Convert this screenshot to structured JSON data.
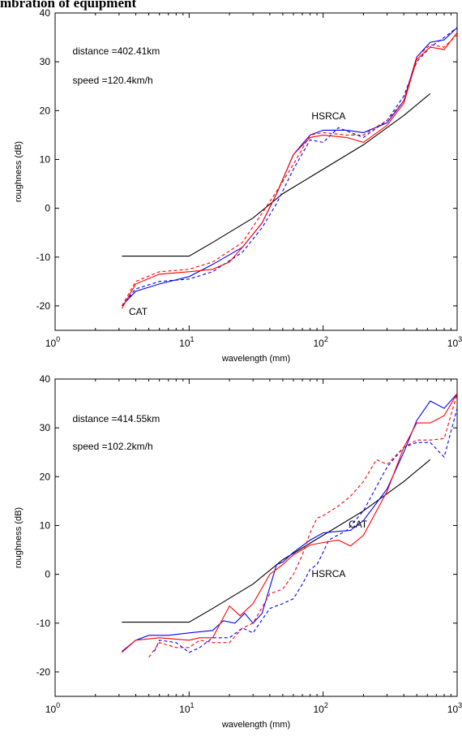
{
  "page": {
    "heading": "mbration of equipment"
  },
  "chart_data": [
    {
      "type": "line",
      "xscale": "log",
      "xlabel": "wavelength (mm)",
      "ylabel": "roughness (dB)",
      "xlim": [
        1,
        1000
      ],
      "ylim": [
        -25,
        40
      ],
      "x_ticks": [
        {
          "base": "10",
          "exp": "0",
          "value": 1
        },
        {
          "base": "10",
          "exp": "1",
          "value": 10
        },
        {
          "base": "10",
          "exp": "2",
          "value": 100
        },
        {
          "base": "10",
          "exp": "3",
          "value": 1000
        }
      ],
      "y_ticks": [
        -20,
        -10,
        0,
        10,
        20,
        30,
        40
      ],
      "annotations": [
        {
          "text": "distance =402.41km",
          "x": 1.35,
          "y": 31.5
        },
        {
          "text": "speed =120.4km/h",
          "x": 1.35,
          "y": 25.5
        },
        {
          "text": "HSRCA",
          "x": 82,
          "y": 18.2
        },
        {
          "text": "CAT",
          "x": 3.55,
          "y": -21.8
        }
      ],
      "series": [
        {
          "color": "#000000",
          "dash": false,
          "points": [
            [
              3.15,
              -9.8
            ],
            [
              10,
              -9.8
            ],
            [
              15,
              -7
            ],
            [
              30,
              -2
            ],
            [
              50,
              3
            ],
            [
              100,
              8
            ],
            [
              200,
              13
            ],
            [
              400,
              19
            ],
            [
              630,
              23.5
            ]
          ]
        },
        {
          "color": "#0000ff",
          "dash": false,
          "points": [
            [
              3.15,
              -20
            ],
            [
              4,
              -17
            ],
            [
              6,
              -15.5
            ],
            [
              10,
              -14
            ],
            [
              15,
              -11.5
            ],
            [
              25,
              -8
            ],
            [
              35,
              -3
            ],
            [
              45,
              3
            ],
            [
              60,
              11
            ],
            [
              80,
              15
            ],
            [
              100,
              16
            ],
            [
              150,
              16
            ],
            [
              200,
              15.5
            ],
            [
              300,
              17.5
            ],
            [
              400,
              22
            ],
            [
              500,
              31
            ],
            [
              630,
              34
            ],
            [
              800,
              34.5
            ],
            [
              1000,
              37
            ]
          ]
        },
        {
          "color": "#0000ff",
          "dash": true,
          "points": [
            [
              3.15,
              -20
            ],
            [
              4,
              -16.5
            ],
            [
              6,
              -15
            ],
            [
              10,
              -14.5
            ],
            [
              15,
              -13
            ],
            [
              25,
              -9
            ],
            [
              35,
              -4
            ],
            [
              45,
              1
            ],
            [
              60,
              8
            ],
            [
              80,
              14
            ],
            [
              100,
              13.5
            ],
            [
              130,
              16.5
            ],
            [
              200,
              14.5
            ],
            [
              300,
              18
            ],
            [
              400,
              23
            ],
            [
              500,
              30
            ],
            [
              630,
              33
            ],
            [
              800,
              35
            ],
            [
              1000,
              37
            ]
          ]
        },
        {
          "color": "#ff0000",
          "dash": false,
          "points": [
            [
              3.15,
              -20.5
            ],
            [
              4,
              -15.5
            ],
            [
              6,
              -13.5
            ],
            [
              10,
              -13
            ],
            [
              15,
              -12.5
            ],
            [
              20,
              -11
            ],
            [
              25,
              -8
            ],
            [
              35,
              -3
            ],
            [
              45,
              3
            ],
            [
              60,
              11
            ],
            [
              80,
              14.5
            ],
            [
              100,
              15
            ],
            [
              150,
              14.5
            ],
            [
              200,
              13.5
            ],
            [
              300,
              17
            ],
            [
              400,
              21.5
            ],
            [
              500,
              30.5
            ],
            [
              630,
              33
            ],
            [
              800,
              32.5
            ],
            [
              1000,
              36
            ]
          ]
        },
        {
          "color": "#ff0000",
          "dash": true,
          "points": [
            [
              3.15,
              -20
            ],
            [
              4,
              -15
            ],
            [
              6,
              -13
            ],
            [
              10,
              -12.5
            ],
            [
              15,
              -11
            ],
            [
              25,
              -7
            ],
            [
              35,
              -1
            ],
            [
              45,
              3.5
            ],
            [
              60,
              9
            ],
            [
              80,
              15
            ],
            [
              100,
              15.5
            ],
            [
              150,
              15
            ],
            [
              200,
              15
            ],
            [
              300,
              18
            ],
            [
              400,
              22
            ],
            [
              500,
              31
            ],
            [
              630,
              33.5
            ],
            [
              800,
              33
            ],
            [
              1000,
              35.5
            ]
          ]
        }
      ]
    },
    {
      "type": "line",
      "xscale": "log",
      "xlabel": "wavelength (mm)",
      "ylabel": "roughness (dB)",
      "xlim": [
        1,
        1000
      ],
      "ylim": [
        -25,
        40
      ],
      "x_ticks": [
        {
          "base": "10",
          "exp": "0",
          "value": 1
        },
        {
          "base": "10",
          "exp": "1",
          "value": 10
        },
        {
          "base": "10",
          "exp": "2",
          "value": 100
        },
        {
          "base": "10",
          "exp": "3",
          "value": 1000
        }
      ],
      "y_ticks": [
        -20,
        -10,
        0,
        10,
        20,
        30,
        40
      ],
      "annotations": [
        {
          "text": "distance =414.55km",
          "x": 1.35,
          "y": 31.2
        },
        {
          "text": "speed =102.2km/h",
          "x": 1.35,
          "y": 25.5
        },
        {
          "text": "CAT",
          "x": 155,
          "y": 9.6
        },
        {
          "text": "HSRCA",
          "x": 82,
          "y": -0.6
        }
      ],
      "series": [
        {
          "color": "#000000",
          "dash": false,
          "points": [
            [
              3.15,
              -9.8
            ],
            [
              10,
              -9.8
            ],
            [
              15,
              -7
            ],
            [
              30,
              -2
            ],
            [
              50,
              3
            ],
            [
              100,
              8
            ],
            [
              200,
              13
            ],
            [
              400,
              19
            ],
            [
              630,
              23.5
            ]
          ]
        },
        {
          "color": "#0000ff",
          "dash": false,
          "points": [
            [
              3.15,
              -15.8
            ],
            [
              4,
              -13.5
            ],
            [
              5,
              -12.5
            ],
            [
              7,
              -12.5
            ],
            [
              10,
              -12
            ],
            [
              15,
              -11.5
            ],
            [
              18,
              -9.5
            ],
            [
              22,
              -10
            ],
            [
              26,
              -8
            ],
            [
              30,
              -10
            ],
            [
              35,
              -8
            ],
            [
              45,
              2
            ],
            [
              50,
              2.5
            ],
            [
              60,
              4.5
            ],
            [
              80,
              7
            ],
            [
              100,
              8.5
            ],
            [
              130,
              8.8
            ],
            [
              160,
              9
            ],
            [
              200,
              11
            ],
            [
              300,
              17.5
            ],
            [
              400,
              25
            ],
            [
              500,
              31.5
            ],
            [
              630,
              35.5
            ],
            [
              800,
              34
            ],
            [
              1000,
              37
            ]
          ]
        },
        {
          "color": "#0000ff",
          "dash": true,
          "points": [
            [
              5.5,
              -15.8
            ],
            [
              6,
              -13.5
            ],
            [
              8,
              -14
            ],
            [
              10,
              -16
            ],
            [
              12,
              -15
            ],
            [
              15,
              -13
            ],
            [
              20,
              -13
            ],
            [
              25,
              -11
            ],
            [
              30,
              -12
            ],
            [
              40,
              -7
            ],
            [
              50,
              -6
            ],
            [
              60,
              -5
            ],
            [
              70,
              -2
            ],
            [
              80,
              1
            ],
            [
              90,
              2
            ],
            [
              100,
              4.5
            ],
            [
              110,
              7
            ],
            [
              150,
              9
            ],
            [
              200,
              13
            ],
            [
              300,
              22
            ],
            [
              400,
              26
            ],
            [
              500,
              27
            ],
            [
              630,
              27
            ],
            [
              800,
              24
            ],
            [
              1000,
              34
            ]
          ]
        },
        {
          "color": "#ff0000",
          "dash": false,
          "points": [
            [
              3.15,
              -16
            ],
            [
              4,
              -13.5
            ],
            [
              6,
              -13
            ],
            [
              10,
              -13.5
            ],
            [
              12,
              -13
            ],
            [
              15,
              -13
            ],
            [
              20,
              -6.5
            ],
            [
              24,
              -8.5
            ],
            [
              30,
              -6
            ],
            [
              40,
              0
            ],
            [
              50,
              2
            ],
            [
              60,
              4
            ],
            [
              80,
              6
            ],
            [
              100,
              6.5
            ],
            [
              130,
              7
            ],
            [
              160,
              5.8
            ],
            [
              200,
              8
            ],
            [
              300,
              17
            ],
            [
              400,
              26
            ],
            [
              500,
              31
            ],
            [
              630,
              31
            ],
            [
              800,
              32.5
            ],
            [
              1000,
              37
            ]
          ]
        },
        {
          "color": "#ff0000",
          "dash": true,
          "points": [
            [
              5,
              -17
            ],
            [
              6,
              -14
            ],
            [
              8,
              -15
            ],
            [
              10,
              -15
            ],
            [
              12,
              -13.5
            ],
            [
              15,
              -14
            ],
            [
              20,
              -14
            ],
            [
              25,
              -11
            ],
            [
              30,
              -10
            ],
            [
              40,
              -4
            ],
            [
              50,
              -3
            ],
            [
              60,
              0
            ],
            [
              70,
              4
            ],
            [
              80,
              8.5
            ],
            [
              90,
              11.5
            ],
            [
              100,
              12
            ],
            [
              130,
              14
            ],
            [
              160,
              16
            ],
            [
              200,
              19
            ],
            [
              250,
              23.5
            ],
            [
              300,
              22.5
            ],
            [
              400,
              26
            ],
            [
              500,
              27.5
            ],
            [
              630,
              27.5
            ],
            [
              800,
              27.8
            ],
            [
              1000,
              37
            ]
          ]
        }
      ]
    }
  ]
}
